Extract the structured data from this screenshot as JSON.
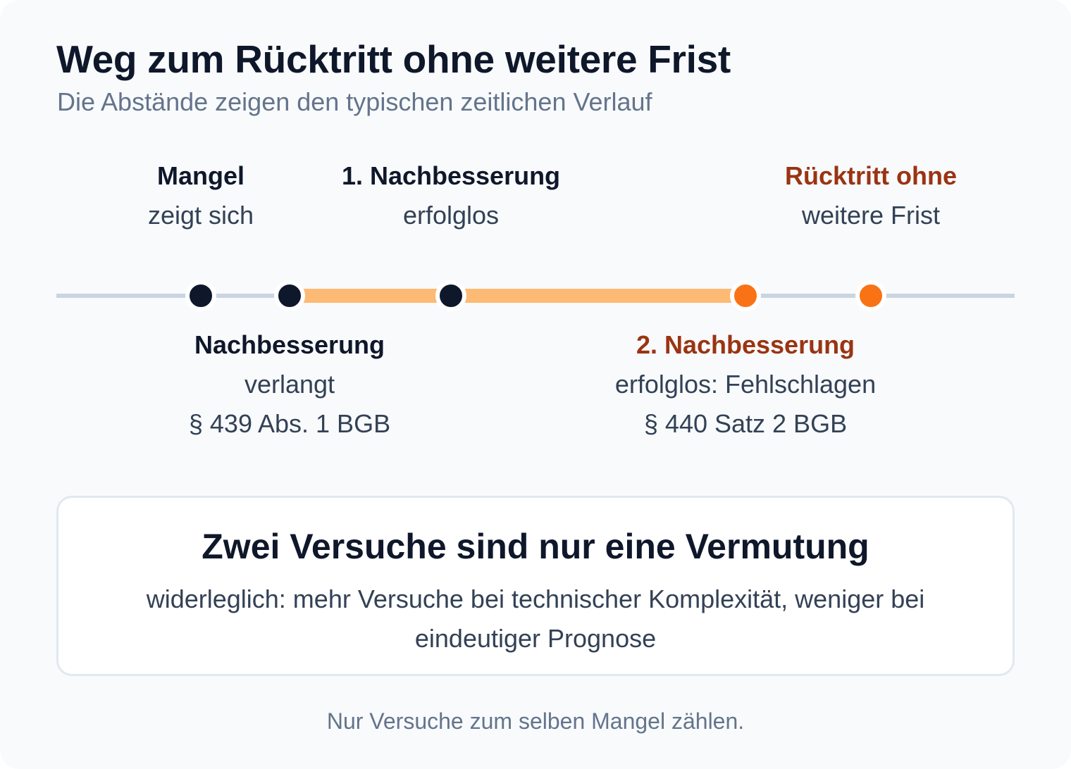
{
  "title": "Weg zum Rücktritt ohne weitere Frist",
  "subtitle": "Die Abstände zeigen den typischen zeitlichen Verlauf",
  "colors": {
    "dark": "#0f172a",
    "accent_text": "#9a3412",
    "accent_dot": "#f97316",
    "highlight_track": "#fdba74",
    "base_track": "#cbd5e1"
  },
  "timeline": {
    "events": [
      {
        "title": "Mangel",
        "lines": [
          "zeigt sich"
        ],
        "label_side": "above",
        "dot": "dark"
      },
      {
        "title": "Nachbesserung",
        "lines": [
          "verlangt",
          "§ 439 Abs. 1 BGB"
        ],
        "label_side": "below",
        "dot": "dark"
      },
      {
        "title": "1. Nachbesserung",
        "lines": [
          "erfolglos"
        ],
        "label_side": "above",
        "dot": "dark"
      },
      {
        "title": "2. Nachbesserung",
        "lines": [
          "erfolglos: Fehlschlagen",
          "§ 440 Satz 2 BGB"
        ],
        "label_side": "below",
        "dot": "accent",
        "title_color": "accent"
      },
      {
        "title": "Rücktritt ohne",
        "lines": [
          "weitere Frist"
        ],
        "label_side": "above",
        "dot": "accent",
        "title_color": "accent"
      }
    ],
    "highlight_segments": [
      [
        1,
        2
      ],
      [
        2,
        3
      ]
    ]
  },
  "note": {
    "title": "Zwei Versuche sind nur eine Vermutung",
    "body": "widerleglich: mehr Versuche bei technischer Komplexität, weniger bei eindeutiger Prognose"
  },
  "footnote": "Nur Versuche zum selben Mangel zählen."
}
